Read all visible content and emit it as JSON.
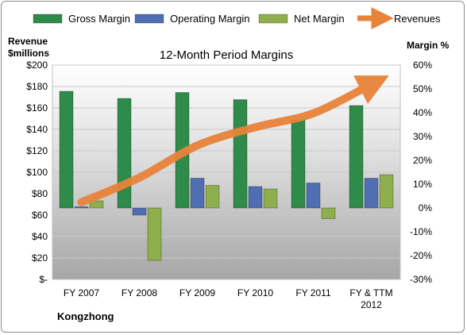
{
  "chart_data": {
    "type": "bar",
    "title": "12-Month Period Margins",
    "company": "Kongzhong",
    "ylabel_left": [
      "Revenue",
      "$millions"
    ],
    "ylabel_right": "Margin %",
    "categories": [
      "FY 2007",
      "FY 2008",
      "FY 2009",
      "FY 2010",
      "FY 2011",
      "FY & TTM 2012"
    ],
    "category_lines": [
      [
        "FY 2007"
      ],
      [
        "FY 2008"
      ],
      [
        "FY 2009"
      ],
      [
        "FY 2010"
      ],
      [
        "FY 2011"
      ],
      [
        "FY & TTM",
        "2012"
      ]
    ],
    "left_axis": {
      "min": 0,
      "max": 200,
      "step": 20,
      "ticks": [
        "$-",
        "$20",
        "$40",
        "$60",
        "$80",
        "$100",
        "$120",
        "$140",
        "$160",
        "$180",
        "$200"
      ]
    },
    "right_axis": {
      "min": -30,
      "max": 60,
      "step": 10,
      "ticks": [
        "-30%",
        "-20%",
        "-10%",
        "0%",
        "10%",
        "20%",
        "30%",
        "40%",
        "50%",
        "60%"
      ]
    },
    "margin_series": [
      {
        "name": "Gross Margin",
        "color": "#2e8b4a",
        "values": [
          49,
          46,
          48.5,
          45.5,
          37,
          43
        ]
      },
      {
        "name": "Operating Margin",
        "color": "#4f6fb2",
        "values": [
          0.5,
          -3,
          12.5,
          9,
          10.5,
          12.5
        ]
      },
      {
        "name": "Net Margin",
        "color": "#8fae4e",
        "values": [
          3,
          -22,
          9.5,
          8,
          -4.5,
          14
        ]
      }
    ],
    "revenue_series": {
      "name": "Revenues",
      "color": "#e8833a",
      "values": [
        72,
        95,
        125,
        142,
        155,
        182
      ]
    },
    "legend_position": "top"
  }
}
